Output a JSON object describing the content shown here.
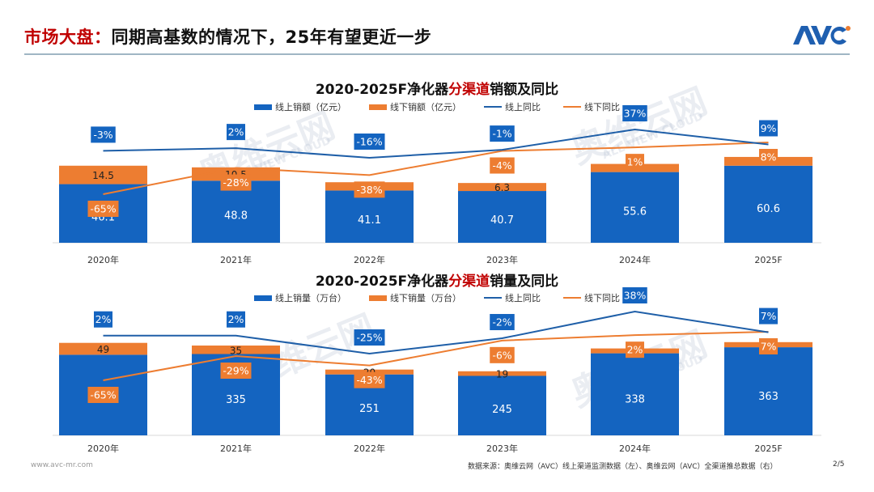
{
  "header": {
    "title_highlight": "市场大盘：",
    "title_rest": "同期高基数的情况下，25年有望更近一步",
    "logo_text": "AVC"
  },
  "colors": {
    "online": "#1464c0",
    "offline": "#ed7d31",
    "online_line": "#1f5fa8",
    "offline_line": "#ed7d31",
    "title_red": "#c00000"
  },
  "watermark": {
    "cn": "奥维云网",
    "en": "ALL VIEW CLOUD"
  },
  "chart_data": [
    {
      "type": "bar",
      "stacked": true,
      "title_prefix": "2020-2025F净化器",
      "title_highlight": "分渠道",
      "title_suffix": "销额及同比",
      "categories": [
        "2020年",
        "2021年",
        "2022年",
        "2023年",
        "2024年",
        "2025F"
      ],
      "legend": [
        "线上销额（亿元）",
        "线下销额（亿元）",
        "线上同比",
        "线下同比"
      ],
      "legend_position": "top-center",
      "series": [
        {
          "name": "线上销额（亿元）",
          "kind": "bar",
          "values": [
            46.1,
            48.8,
            41.1,
            40.7,
            55.6,
            60.6
          ],
          "labels": [
            "46.1",
            "48.8",
            "41.1",
            "40.7",
            "55.6",
            "60.6"
          ]
        },
        {
          "name": "线下销额（亿元）",
          "kind": "bar",
          "values": [
            14.5,
            10.5,
            6.5,
            6.3,
            6.4,
            6.9
          ],
          "labels": [
            "14.5",
            "10.5",
            "6.5",
            "6.3",
            "",
            ""
          ]
        },
        {
          "name": "线上同比",
          "kind": "line",
          "values": [
            -3,
            2,
            -16,
            -1,
            37,
            9
          ],
          "labels": [
            "-3%",
            "2%",
            "-16%",
            "-1%",
            "37%",
            "9%"
          ]
        },
        {
          "name": "线下同比",
          "kind": "line",
          "values": [
            -65,
            -28,
            -38,
            -4,
            1,
            8
          ],
          "labels": [
            "-65%",
            "-28%",
            "-38%",
            "-4%",
            "1%",
            "8%"
          ]
        }
      ],
      "ylim": [
        0,
        70
      ],
      "grid": false
    },
    {
      "type": "bar",
      "stacked": true,
      "title_prefix": "2020-2025F净化器",
      "title_highlight": "分渠道",
      "title_suffix": "销量及同比",
      "categories": [
        "2020年",
        "2021年",
        "2022年",
        "2023年",
        "2024年",
        "2025F"
      ],
      "legend": [
        "线上销量（万台）",
        "线下销量（万台）",
        "线上同比",
        "线下同比"
      ],
      "legend_position": "top-center",
      "series": [
        {
          "name": "线上销量（万台）",
          "kind": "bar",
          "values": [
            332,
            335,
            251,
            245,
            338,
            363
          ],
          "labels": [
            "",
            "335",
            "251",
            "245",
            "338",
            "363"
          ]
        },
        {
          "name": "线下销量（万台）",
          "kind": "bar",
          "values": [
            49,
            35,
            20,
            19,
            20,
            21
          ],
          "labels": [
            "49",
            "35",
            "20",
            "19",
            "",
            "21"
          ]
        },
        {
          "name": "线上同比",
          "kind": "line",
          "values": [
            2,
            2,
            -25,
            -2,
            38,
            7
          ],
          "labels": [
            "2%",
            "2%",
            "-25%",
            "-2%",
            "38%",
            "7%"
          ]
        },
        {
          "name": "线下同比",
          "kind": "line",
          "values": [
            -65,
            -29,
            -43,
            -6,
            2,
            7
          ],
          "labels": [
            "-65%",
            "-29%",
            "-43%",
            "-6%",
            "2%",
            "7%"
          ]
        }
      ],
      "ylim": [
        0,
        420
      ],
      "grid": false
    }
  ],
  "footer": {
    "website": "www.avc-mr.com",
    "source": "数据来源：奥维云网（AVC）线上渠道监测数据（左）、奥维云网（AVC）全渠道推总数据（右）",
    "page": "2/5"
  }
}
